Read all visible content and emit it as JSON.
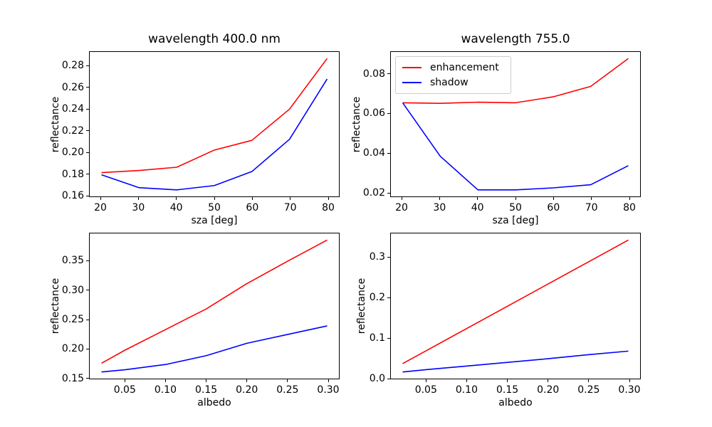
{
  "figure": {
    "background": "#ffffff"
  },
  "colors": {
    "enhancement": "#ff0000",
    "shadow": "#0000ff",
    "axis": "#000000",
    "legend_border": "#cccccc"
  },
  "legend": {
    "position": "upper-left-of-second-panel",
    "entries": [
      {
        "label": "enhancement",
        "color": "#ff0000"
      },
      {
        "label": "shadow",
        "color": "#0000ff"
      }
    ]
  },
  "chart_data": [
    {
      "id": "reflectance-vs-sza-400nm",
      "type": "line",
      "title": "wavelength 400.0 nm",
      "xlabel": "sza [deg]",
      "ylabel": "reflectance",
      "grid": false,
      "x": [
        20,
        30,
        40,
        50,
        60,
        70,
        80
      ],
      "series": [
        {
          "name": "enhancement",
          "color": "#ff0000",
          "values": [
            0.181,
            0.183,
            0.186,
            0.202,
            0.211,
            0.24,
            0.287
          ]
        },
        {
          "name": "shadow",
          "color": "#0000ff",
          "values": [
            0.179,
            0.167,
            0.165,
            0.169,
            0.182,
            0.212,
            0.268
          ]
        }
      ],
      "xlim": [
        17,
        83
      ],
      "ylim": [
        0.1589,
        0.2931
      ],
      "xticks": [
        20,
        30,
        40,
        50,
        60,
        70,
        80
      ],
      "xtick_labels": [
        "20",
        "30",
        "40",
        "50",
        "60",
        "70",
        "80"
      ],
      "yticks": [
        0.16,
        0.18,
        0.2,
        0.22,
        0.24,
        0.26,
        0.28
      ],
      "ytick_labels": [
        "0.16",
        "0.18",
        "0.20",
        "0.22",
        "0.24",
        "0.26",
        "0.28"
      ],
      "legend": false
    },
    {
      "id": "reflectance-vs-sza-755nm",
      "type": "line",
      "title": "wavelength 755.0",
      "xlabel": "sza [deg]",
      "ylabel": "reflectance",
      "grid": false,
      "x": [
        20,
        30,
        40,
        50,
        60,
        70,
        80
      ],
      "series": [
        {
          "name": "enhancement",
          "color": "#ff0000",
          "values": [
            0.0655,
            0.0652,
            0.0658,
            0.0655,
            0.0685,
            0.0738,
            0.088
          ]
        },
        {
          "name": "shadow",
          "color": "#0000ff",
          "values": [
            0.0655,
            0.0383,
            0.0212,
            0.0212,
            0.0222,
            0.0238,
            0.0335
          ]
        }
      ],
      "xlim": [
        17,
        83
      ],
      "ylim": [
        0.01786,
        0.09134
      ],
      "xticks": [
        20,
        30,
        40,
        50,
        60,
        70,
        80
      ],
      "xtick_labels": [
        "20",
        "30",
        "40",
        "50",
        "60",
        "70",
        "80"
      ],
      "yticks": [
        0.02,
        0.04,
        0.06,
        0.08
      ],
      "ytick_labels": [
        "0.02",
        "0.04",
        "0.06",
        "0.08"
      ],
      "legend": true
    },
    {
      "id": "reflectance-vs-albedo-400nm",
      "type": "line",
      "xlabel": "albedo",
      "ylabel": "reflectance",
      "grid": false,
      "x": [
        0.02,
        0.05,
        0.1,
        0.15,
        0.2,
        0.25,
        0.3
      ],
      "series": [
        {
          "name": "enhancement",
          "color": "#ff0000",
          "values": [
            0.175,
            0.198,
            0.233,
            0.268,
            0.311,
            0.349,
            0.386
          ]
        },
        {
          "name": "shadow",
          "color": "#0000ff",
          "values": [
            0.16,
            0.164,
            0.173,
            0.188,
            0.209,
            0.224,
            0.239
          ]
        }
      ],
      "xlim": [
        0.006,
        0.314
      ],
      "ylim": [
        0.1487,
        0.3973
      ],
      "xticks": [
        0.05,
        0.1,
        0.15,
        0.2,
        0.25,
        0.3
      ],
      "xtick_labels": [
        "0.05",
        "0.10",
        "0.15",
        "0.20",
        "0.25",
        "0.30"
      ],
      "yticks": [
        0.15,
        0.2,
        0.25,
        0.3,
        0.35
      ],
      "ytick_labels": [
        "0.15",
        "0.20",
        "0.25",
        "0.30",
        "0.35"
      ],
      "legend": false
    },
    {
      "id": "reflectance-vs-albedo-755nm",
      "type": "line",
      "xlabel": "albedo",
      "ylabel": "reflectance",
      "grid": false,
      "x": [
        0.02,
        0.05,
        0.1,
        0.15,
        0.2,
        0.25,
        0.3
      ],
      "series": [
        {
          "name": "enhancement",
          "color": "#ff0000",
          "values": [
            0.036,
            0.069,
            0.124,
            0.179,
            0.234,
            0.289,
            0.344
          ]
        },
        {
          "name": "shadow",
          "color": "#0000ff",
          "values": [
            0.015,
            0.021,
            0.03,
            0.039,
            0.048,
            0.058,
            0.067
          ]
        }
      ],
      "xlim": [
        0.006,
        0.314
      ],
      "ylim": [
        -0.0015,
        0.3605
      ],
      "xticks": [
        0.05,
        0.1,
        0.15,
        0.2,
        0.25,
        0.3
      ],
      "xtick_labels": [
        "0.05",
        "0.10",
        "0.15",
        "0.20",
        "0.25",
        "0.30"
      ],
      "yticks": [
        0.0,
        0.1,
        0.2,
        0.3
      ],
      "ytick_labels": [
        "0.0",
        "0.1",
        "0.2",
        "0.3"
      ],
      "legend": false
    }
  ]
}
